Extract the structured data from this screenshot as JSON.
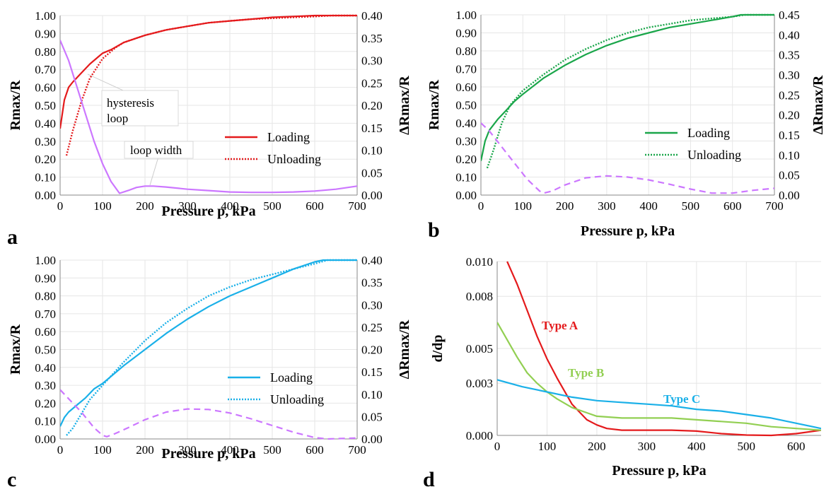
{
  "colors": {
    "red": "#e41a1c",
    "green": "#1aa64a",
    "blue": "#1ab0e8",
    "purple": "#cc77ff",
    "lightgreen": "#92cf52",
    "grid": "#e6e6e6",
    "axis": "#888888"
  },
  "chart_data": [
    {
      "type": "line",
      "panel_label": "a",
      "xlabel": "Pressure p, kPa",
      "ylabel": "Rmax/R",
      "y2label": "ΔRmax/R",
      "xlim": [
        0,
        700
      ],
      "ylim": [
        0,
        1
      ],
      "y2lim": [
        0,
        0.4
      ],
      "xticks": [
        "0",
        "100",
        "200",
        "300",
        "400",
        "500",
        "600",
        "700"
      ],
      "yticks": [
        "0.00",
        "0.10",
        "0.20",
        "0.30",
        "0.40",
        "0.50",
        "0.60",
        "0.70",
        "0.80",
        "0.90",
        "1.00"
      ],
      "y2ticks": [
        "0.00",
        "0.05",
        "0.10",
        "0.15",
        "0.20",
        "0.25",
        "0.30",
        "0.35",
        "0.40"
      ],
      "annotations": [
        "hysteresis loop",
        "loop width"
      ],
      "series": [
        {
          "name": "Loading",
          "axis": "y",
          "style": "solid",
          "color": "red",
          "x": [
            0,
            5,
            10,
            20,
            30,
            50,
            70,
            90,
            100,
            120,
            150,
            200,
            250,
            300,
            350,
            400,
            450,
            500,
            550,
            600,
            620,
            700
          ],
          "y": [
            0.37,
            0.45,
            0.53,
            0.6,
            0.63,
            0.68,
            0.73,
            0.77,
            0.79,
            0.81,
            0.85,
            0.89,
            0.92,
            0.94,
            0.96,
            0.97,
            0.98,
            0.99,
            0.995,
            1.0,
            1.0,
            1.0
          ]
        },
        {
          "name": "Unloading",
          "axis": "y",
          "style": "dotted",
          "color": "red",
          "x": [
            15,
            30,
            50,
            70,
            100,
            130,
            150,
            200,
            250,
            300,
            350,
            400,
            450,
            500,
            550,
            600,
            640,
            700
          ],
          "y": [
            0.22,
            0.36,
            0.52,
            0.65,
            0.76,
            0.82,
            0.85,
            0.89,
            0.92,
            0.94,
            0.96,
            0.97,
            0.98,
            0.985,
            0.99,
            0.995,
            1.0,
            1.0
          ]
        },
        {
          "name": "",
          "axis": "y2",
          "style": "solid",
          "color": "purple",
          "x": [
            0,
            20,
            40,
            60,
            80,
            100,
            120,
            140,
            160,
            180,
            200,
            220,
            250,
            300,
            350,
            400,
            450,
            500,
            550,
            600,
            650,
            700
          ],
          "y": [
            0.345,
            0.3,
            0.24,
            0.18,
            0.12,
            0.07,
            0.03,
            0.004,
            0.01,
            0.017,
            0.02,
            0.02,
            0.018,
            0.013,
            0.01,
            0.007,
            0.006,
            0.006,
            0.007,
            0.009,
            0.013,
            0.02
          ]
        }
      ]
    },
    {
      "type": "line",
      "panel_label": "b",
      "xlabel": "Pressure p, kPa",
      "ylabel": "Rmax/R",
      "y2label": "ΔRmax/R",
      "xlim": [
        0,
        700
      ],
      "ylim": [
        0,
        1
      ],
      "y2lim": [
        0,
        0.45
      ],
      "xticks": [
        "0",
        "100",
        "200",
        "300",
        "400",
        "500",
        "600",
        "700"
      ],
      "yticks": [
        "0.00",
        "0.10",
        "0.20",
        "0.30",
        "0.40",
        "0.50",
        "0.60",
        "0.70",
        "0.80",
        "0.90",
        "1.00"
      ],
      "y2ticks": [
        "0.00",
        "0.05",
        "0.10",
        "0.15",
        "0.20",
        "0.25",
        "0.30",
        "0.35",
        "0.40",
        "0.45"
      ],
      "series": [
        {
          "name": "Loading",
          "axis": "y",
          "style": "solid",
          "color": "green",
          "x": [
            0,
            10,
            20,
            40,
            60,
            80,
            100,
            150,
            200,
            250,
            300,
            350,
            400,
            450,
            500,
            550,
            600,
            620,
            700
          ],
          "y": [
            0.19,
            0.3,
            0.36,
            0.42,
            0.47,
            0.52,
            0.56,
            0.65,
            0.72,
            0.78,
            0.83,
            0.87,
            0.9,
            0.93,
            0.95,
            0.97,
            0.99,
            1.0,
            1.0
          ]
        },
        {
          "name": "Unloading",
          "axis": "y",
          "style": "dotted",
          "color": "green",
          "x": [
            15,
            30,
            50,
            70,
            100,
            150,
            200,
            250,
            300,
            350,
            400,
            450,
            500,
            550,
            600,
            630,
            700
          ],
          "y": [
            0.15,
            0.25,
            0.4,
            0.5,
            0.58,
            0.67,
            0.75,
            0.81,
            0.86,
            0.9,
            0.93,
            0.95,
            0.97,
            0.98,
            0.99,
            1.0,
            1.0
          ]
        },
        {
          "name": "",
          "axis": "y2",
          "style": "dashed",
          "color": "purple",
          "x": [
            0,
            20,
            50,
            80,
            110,
            140,
            150,
            170,
            200,
            250,
            300,
            350,
            400,
            450,
            500,
            550,
            600,
            650,
            700
          ],
          "y": [
            0.18,
            0.16,
            0.12,
            0.08,
            0.04,
            0.01,
            0.005,
            0.01,
            0.025,
            0.043,
            0.048,
            0.045,
            0.038,
            0.027,
            0.015,
            0.005,
            0.005,
            0.012,
            0.017
          ]
        }
      ]
    },
    {
      "type": "line",
      "panel_label": "c",
      "xlabel": "Pressure p, kPa",
      "ylabel": "Rmax/R",
      "y2label": "ΔRmax/R",
      "xlim": [
        0,
        700
      ],
      "ylim": [
        0,
        1
      ],
      "y2lim": [
        0,
        0.4
      ],
      "xticks": [
        "0",
        "100",
        "200",
        "300",
        "400",
        "500",
        "600",
        "700"
      ],
      "yticks": [
        "0.00",
        "0.10",
        "0.20",
        "0.30",
        "0.40",
        "0.50",
        "0.60",
        "0.70",
        "0.80",
        "0.90",
        "1.00"
      ],
      "y2ticks": [
        "0.00",
        "0.05",
        "0.10",
        "0.15",
        "0.20",
        "0.25",
        "0.30",
        "0.35",
        "0.40"
      ],
      "series": [
        {
          "name": "Loading",
          "axis": "y",
          "style": "solid",
          "color": "blue",
          "x": [
            0,
            10,
            20,
            40,
            60,
            80,
            100,
            150,
            200,
            250,
            300,
            350,
            400,
            450,
            500,
            550,
            600,
            620,
            700
          ],
          "y": [
            0.07,
            0.12,
            0.15,
            0.19,
            0.23,
            0.28,
            0.31,
            0.41,
            0.5,
            0.59,
            0.67,
            0.74,
            0.8,
            0.85,
            0.9,
            0.95,
            0.99,
            1.0,
            1.0
          ]
        },
        {
          "name": "Unloading",
          "axis": "y",
          "style": "dotted",
          "color": "blue",
          "x": [
            15,
            30,
            50,
            70,
            100,
            150,
            200,
            250,
            300,
            350,
            400,
            450,
            500,
            550,
            600,
            630,
            700
          ],
          "y": [
            0.02,
            0.06,
            0.14,
            0.22,
            0.3,
            0.43,
            0.55,
            0.65,
            0.73,
            0.8,
            0.85,
            0.89,
            0.92,
            0.95,
            0.98,
            1.0,
            1.0
          ]
        },
        {
          "name": "",
          "axis": "y2",
          "style": "dashed",
          "color": "purple",
          "x": [
            0,
            20,
            50,
            80,
            100,
            110,
            130,
            160,
            200,
            250,
            300,
            350,
            400,
            450,
            500,
            550,
            600,
            630,
            700
          ],
          "y": [
            0.11,
            0.09,
            0.06,
            0.025,
            0.008,
            0.005,
            0.012,
            0.025,
            0.043,
            0.06,
            0.067,
            0.066,
            0.058,
            0.045,
            0.03,
            0.015,
            0.003,
            0.0,
            0.002
          ]
        }
      ]
    },
    {
      "type": "line",
      "panel_label": "d",
      "xlabel": "Pressure p, kPa",
      "ylabel": "d/dp",
      "xlim": [
        0,
        650
      ],
      "ylim": [
        0,
        0.01
      ],
      "xticks": [
        "0",
        "100",
        "200",
        "300",
        "400",
        "500",
        "600"
      ],
      "yticks": [
        "0.000",
        "0.003",
        "0.005",
        "0.008",
        "0.010"
      ],
      "series": [
        {
          "name": "Type A",
          "style": "solid",
          "color": "red",
          "x": [
            20,
            40,
            60,
            80,
            100,
            120,
            150,
            180,
            200,
            220,
            250,
            300,
            350,
            400,
            450,
            500,
            550,
            600,
            650
          ],
          "y": [
            0.01,
            0.0087,
            0.0072,
            0.0057,
            0.0044,
            0.0033,
            0.0018,
            0.0009,
            0.0006,
            0.0004,
            0.0003,
            0.0003,
            0.0003,
            0.00025,
            0.0001,
            2e-05,
            0.0,
            0.0001,
            0.0003
          ]
        },
        {
          "name": "Type B",
          "style": "solid",
          "color": "lightgreen",
          "x": [
            0,
            20,
            40,
            60,
            80,
            100,
            120,
            150,
            180,
            200,
            250,
            300,
            350,
            400,
            450,
            500,
            550,
            600,
            650
          ],
          "y": [
            0.0065,
            0.0055,
            0.0045,
            0.0036,
            0.003,
            0.0025,
            0.0021,
            0.0016,
            0.0013,
            0.0011,
            0.001,
            0.001,
            0.001,
            0.0009,
            0.0008,
            0.0007,
            0.0005,
            0.0004,
            0.0003
          ]
        },
        {
          "name": "Type C",
          "style": "solid",
          "color": "blue",
          "x": [
            0,
            50,
            100,
            150,
            200,
            250,
            300,
            350,
            400,
            450,
            500,
            550,
            600,
            650
          ],
          "y": [
            0.0032,
            0.0028,
            0.0025,
            0.0022,
            0.002,
            0.0019,
            0.0018,
            0.0017,
            0.0015,
            0.0014,
            0.0012,
            0.001,
            0.0007,
            0.0004
          ]
        }
      ]
    }
  ]
}
